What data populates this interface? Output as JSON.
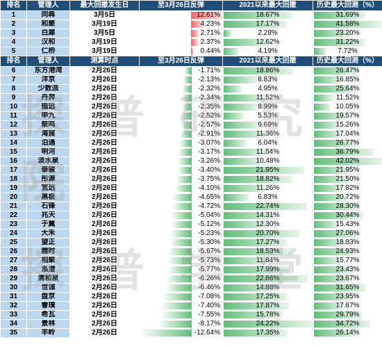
{
  "top_headers": [
    "排名",
    "管理人",
    "最大回撤发生日",
    "至3月26日反弹",
    "2021以来最大回撤",
    "历史最大回测（%）"
  ],
  "top_rows": [
    {
      "rank": "1",
      "manager": "同犇",
      "date": "3月5日",
      "rebound": "12.61%",
      "rebound_pct": 12.61,
      "dd2021": "18.67%",
      "dd2021_pct": 18.67,
      "hist": "31.69%",
      "hist_pct": 31.69
    },
    {
      "rank": "2",
      "manager": "和聚",
      "date": "3月19日",
      "rebound": "4.23%",
      "rebound_pct": 4.23,
      "dd2021": "17.17%",
      "dd2021_pct": 17.17,
      "hist": "41.58%",
      "hist_pct": 41.58
    },
    {
      "rank": "3",
      "manager": "白犀",
      "date": "3月5日",
      "rebound": "2.71%",
      "rebound_pct": 2.71,
      "dd2021": "2.28%",
      "dd2021_pct": 2.28,
      "hist": "23.20%",
      "hist_pct": 23.2
    },
    {
      "rank": "4",
      "manager": "汉和",
      "date": "3月19日",
      "rebound": "2.37%",
      "rebound_pct": 2.37,
      "dd2021": "12.62%",
      "dd2021_pct": 12.62,
      "hist": "31.22%",
      "hist_pct": 31.22
    },
    {
      "rank": "5",
      "manager": "仁桥",
      "date": "3月19日",
      "rebound": "0.44%",
      "rebound_pct": 0.44,
      "dd2021": "4.19%",
      "dd2021_pct": 4.19,
      "hist": "7.72%",
      "hist_pct": 7.72
    }
  ],
  "bottom_headers": [
    "排名",
    "管理人",
    "测算时点",
    "至3月26日反弹",
    "2021以来最大回撤",
    "历史最大回测（%）"
  ],
  "bottom_rows": [
    {
      "rank": "6",
      "manager": "东方港湾",
      "date": "2月26日",
      "rebound": "-1.71%",
      "rebound_pct": -1.71,
      "dd2021": "18.86%",
      "dd2021_pct": 18.86,
      "hist": "26.47%",
      "hist_pct": 26.47
    },
    {
      "rank": "7",
      "manager": "沣京",
      "date": "2月26日",
      "rebound": "-2.13%",
      "rebound_pct": -2.13,
      "dd2021": "8.83%",
      "dd2021_pct": 8.83,
      "hist": "16.85%",
      "hist_pct": 16.85
    },
    {
      "rank": "8",
      "manager": "少数派",
      "date": "2月26日",
      "rebound": "-2.32%",
      "rebound_pct": -2.32,
      "dd2021": "4.95%",
      "dd2021_pct": 4.95,
      "hist": "25.64%",
      "hist_pct": 25.64
    },
    {
      "rank": "9",
      "manager": "丹羿",
      "date": "2月26日",
      "rebound": "-2.34%",
      "rebound_pct": -2.34,
      "dd2021": "11.52%",
      "dd2021_pct": 11.52,
      "hist": "11.52%",
      "hist_pct": 11.52
    },
    {
      "rank": "10",
      "manager": "循远",
      "date": "2月26日",
      "rebound": "-2.35%",
      "rebound_pct": -2.35,
      "dd2021": "8.99%",
      "dd2021_pct": 8.99,
      "hist": "10.05%",
      "hist_pct": 10.05
    },
    {
      "rank": "11",
      "manager": "申九",
      "date": "2月26日",
      "rebound": "-2.52%",
      "rebound_pct": -2.52,
      "dd2021": "5.53%",
      "dd2021_pct": 5.53,
      "hist": "19.57%",
      "hist_pct": 19.57
    },
    {
      "rank": "12",
      "manager": "聚鸣",
      "date": "2月26日",
      "rebound": "-2.57%",
      "rebound_pct": -2.57,
      "dd2021": "9.69%",
      "dd2021_pct": 9.69,
      "hist": "15.26%",
      "hist_pct": 15.26
    },
    {
      "rank": "13",
      "manager": "海宸",
      "date": "2月26日",
      "rebound": "-2.91%",
      "rebound_pct": -2.91,
      "dd2021": "11.36%",
      "dd2021_pct": 11.36,
      "hist": "17.04%",
      "hist_pct": 17.04
    },
    {
      "rank": "14",
      "manager": "泊通",
      "date": "2月26日",
      "rebound": "-3.07%",
      "rebound_pct": -3.07,
      "dd2021": "6.04%",
      "dd2021_pct": 6.04,
      "hist": "26.77%",
      "hist_pct": 26.77
    },
    {
      "rank": "15",
      "manager": "明河",
      "date": "2月26日",
      "rebound": "-3.17%",
      "rebound_pct": -3.17,
      "dd2021": "11.54%",
      "dd2021_pct": 11.54,
      "hist": "36.79%",
      "hist_pct": 36.79
    },
    {
      "rank": "16",
      "manager": "淡水泉",
      "date": "2月26日",
      "rebound": "-3.26%",
      "rebound_pct": -3.26,
      "dd2021": "10.48%",
      "dd2021_pct": 10.48,
      "hist": "42.02%",
      "hist_pct": 42.02
    },
    {
      "rank": "17",
      "manager": "泰骏",
      "date": "2月26日",
      "rebound": "-3.40%",
      "rebound_pct": -3.4,
      "dd2021": "21.95%",
      "dd2021_pct": 21.95,
      "hist": "21.95%",
      "hist_pct": 21.95
    },
    {
      "rank": "18",
      "manager": "彤源",
      "date": "2月26日",
      "rebound": "-3.75%",
      "rebound_pct": -3.75,
      "dd2021": "18.82%",
      "dd2021_pct": 18.82,
      "hist": "21.50%",
      "hist_pct": 21.5
    },
    {
      "rank": "19",
      "manager": "宽远",
      "date": "2月26日",
      "rebound": "-4.10%",
      "rebound_pct": -4.1,
      "dd2021": "11.26%",
      "dd2021_pct": 11.26,
      "hist": "17.82%",
      "hist_pct": 17.82
    },
    {
      "rank": "20",
      "manager": "黑极",
      "date": "2月26日",
      "rebound": "-4.65%",
      "rebound_pct": -4.65,
      "dd2021": "6.83%",
      "dd2021_pct": 6.83,
      "hist": "20.72%",
      "hist_pct": 20.72
    },
    {
      "rank": "21",
      "manager": "石锋",
      "date": "2月26日",
      "rebound": "-4.72%",
      "rebound_pct": -4.72,
      "dd2021": "22.74%",
      "dd2021_pct": 22.74,
      "hist": "28.30%",
      "hist_pct": 28.3
    },
    {
      "rank": "22",
      "manager": "兆天",
      "date": "2月26日",
      "rebound": "-5.04%",
      "rebound_pct": -5.04,
      "dd2021": "14.31%",
      "dd2021_pct": 14.31,
      "hist": "30.44%",
      "hist_pct": 30.44
    },
    {
      "rank": "23",
      "manager": "于翼",
      "date": "2月26日",
      "rebound": "-5.12%",
      "rebound_pct": -5.12,
      "dd2021": "12.30%",
      "dd2021_pct": 12.3,
      "hist": "15.43%",
      "hist_pct": 15.43
    },
    {
      "rank": "24",
      "manager": "大禾",
      "date": "2月26日",
      "rebound": "-5.23%",
      "rebound_pct": -5.23,
      "dd2021": "20.70%",
      "dd2021_pct": 20.7,
      "hist": "27.06%",
      "hist_pct": 27.06
    },
    {
      "rank": "25",
      "manager": "望正",
      "date": "2月26日",
      "rebound": "-5.30%",
      "rebound_pct": -5.3,
      "dd2021": "17.27%",
      "dd2021_pct": 17.27,
      "hist": "18.83%",
      "hist_pct": 18.83
    },
    {
      "rank": "26",
      "manager": "趣时",
      "date": "2月26日",
      "rebound": "-5.67%",
      "rebound_pct": -5.67,
      "dd2021": "18.53%",
      "dd2021_pct": 18.53,
      "hist": "24.93%",
      "hist_pct": 24.93
    },
    {
      "rank": "27",
      "manager": "相聚",
      "date": "2月26日",
      "rebound": "-5.73%",
      "rebound_pct": -5.73,
      "dd2021": "11.84%",
      "dd2021_pct": 11.84,
      "hist": "15.77%",
      "hist_pct": 15.77
    },
    {
      "rank": "28",
      "manager": "泓澄",
      "date": "2月26日",
      "rebound": "-5.77%",
      "rebound_pct": -5.77,
      "dd2021": "17.99%",
      "dd2021_pct": 17.99,
      "hist": "23.43%",
      "hist_pct": 23.43
    },
    {
      "rank": "29",
      "manager": "清和泉",
      "date": "2月26日",
      "rebound": "-6.26%",
      "rebound_pct": -6.26,
      "dd2021": "22.86%",
      "dd2021_pct": 22.86,
      "hist": "23.67%",
      "hist_pct": 23.67
    },
    {
      "rank": "30",
      "manager": "世诚",
      "date": "2月26日",
      "rebound": "-6.46%",
      "rebound_pct": -6.46,
      "dd2021": "14.88%",
      "dd2021_pct": 14.88,
      "hist": "31.65%",
      "hist_pct": 31.65
    },
    {
      "rank": "31",
      "manager": "盘京",
      "date": "2月26日",
      "rebound": "-7.08%",
      "rebound_pct": -7.08,
      "dd2021": "17.25%",
      "dd2021_pct": 17.25,
      "hist": "23.95%",
      "hist_pct": 23.95
    },
    {
      "rank": "32",
      "manager": "睿璞",
      "date": "2月26日",
      "rebound": "-7.40%",
      "rebound_pct": -7.4,
      "dd2021": "17.87%",
      "dd2021_pct": 17.87,
      "hist": "17.87%",
      "hist_pct": 17.87
    },
    {
      "rank": "33",
      "manager": "希瓦",
      "date": "2月26日",
      "rebound": "-7.55%",
      "rebound_pct": -7.55,
      "dd2021": "15.78%",
      "dd2021_pct": 15.78,
      "hist": "29.79%",
      "hist_pct": 29.79
    },
    {
      "rank": "34",
      "manager": "景林",
      "date": "2月26日",
      "rebound": "-8.17%",
      "rebound_pct": -8.17,
      "dd2021": "24.22%",
      "dd2021_pct": 24.22,
      "hist": "34.72%",
      "hist_pct": 34.72
    },
    {
      "rank": "35",
      "manager": "丰岭",
      "date": "2月26日",
      "rebound": "-12.64%",
      "rebound_pct": -12.64,
      "dd2021": "17.35%",
      "dd2021_pct": 17.35,
      "hist": "26.14%",
      "hist_pct": 26.14
    }
  ],
  "watermark_top": "探普研究院",
  "watermark_bottom": "探普学堂",
  "colors": {
    "header_bg": "#1f4e79",
    "rank_bg": "#bdd7ee",
    "green_bar": "#63be7b",
    "red_bar": "#f8696b"
  }
}
